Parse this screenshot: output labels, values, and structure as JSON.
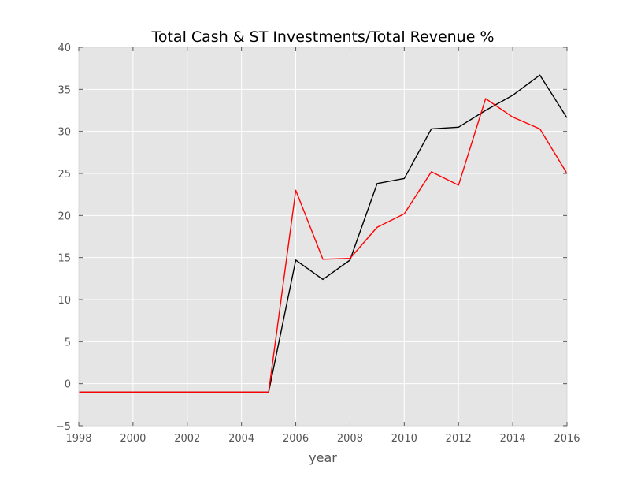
{
  "chart_data": {
    "type": "line",
    "title": "Total Cash & ST Investments/Total Revenue %",
    "xlabel": "year",
    "ylabel": "",
    "xlim": [
      1998,
      2016
    ],
    "ylim": [
      -5,
      40
    ],
    "x_ticks": [
      1998,
      2000,
      2002,
      2004,
      2006,
      2008,
      2010,
      2012,
      2014,
      2016
    ],
    "y_ticks": [
      -5,
      0,
      5,
      10,
      15,
      20,
      25,
      30,
      35,
      40
    ],
    "grid": true,
    "legend": "none",
    "background_color": "#e5e5e5",
    "x": [
      1998,
      1999,
      2000,
      2001,
      2002,
      2003,
      2004,
      2005,
      2006,
      2007,
      2008,
      2009,
      2010,
      2011,
      2012,
      2013,
      2014,
      2015,
      2016
    ],
    "series": [
      {
        "color": "#000000",
        "values": [
          -1,
          -1,
          -1,
          -1,
          -1,
          -1,
          -1,
          -1,
          14.7,
          12.4,
          14.7,
          23.8,
          24.4,
          30.3,
          30.5,
          32.5,
          34.3,
          36.7,
          31.6
        ]
      },
      {
        "color": "#ff0000",
        "values": [
          -1,
          -1,
          -1,
          -1,
          -1,
          -1,
          -1,
          -1,
          23.0,
          14.8,
          14.9,
          18.6,
          20.2,
          25.2,
          23.6,
          33.9,
          31.7,
          30.3,
          25.0
        ]
      }
    ]
  }
}
